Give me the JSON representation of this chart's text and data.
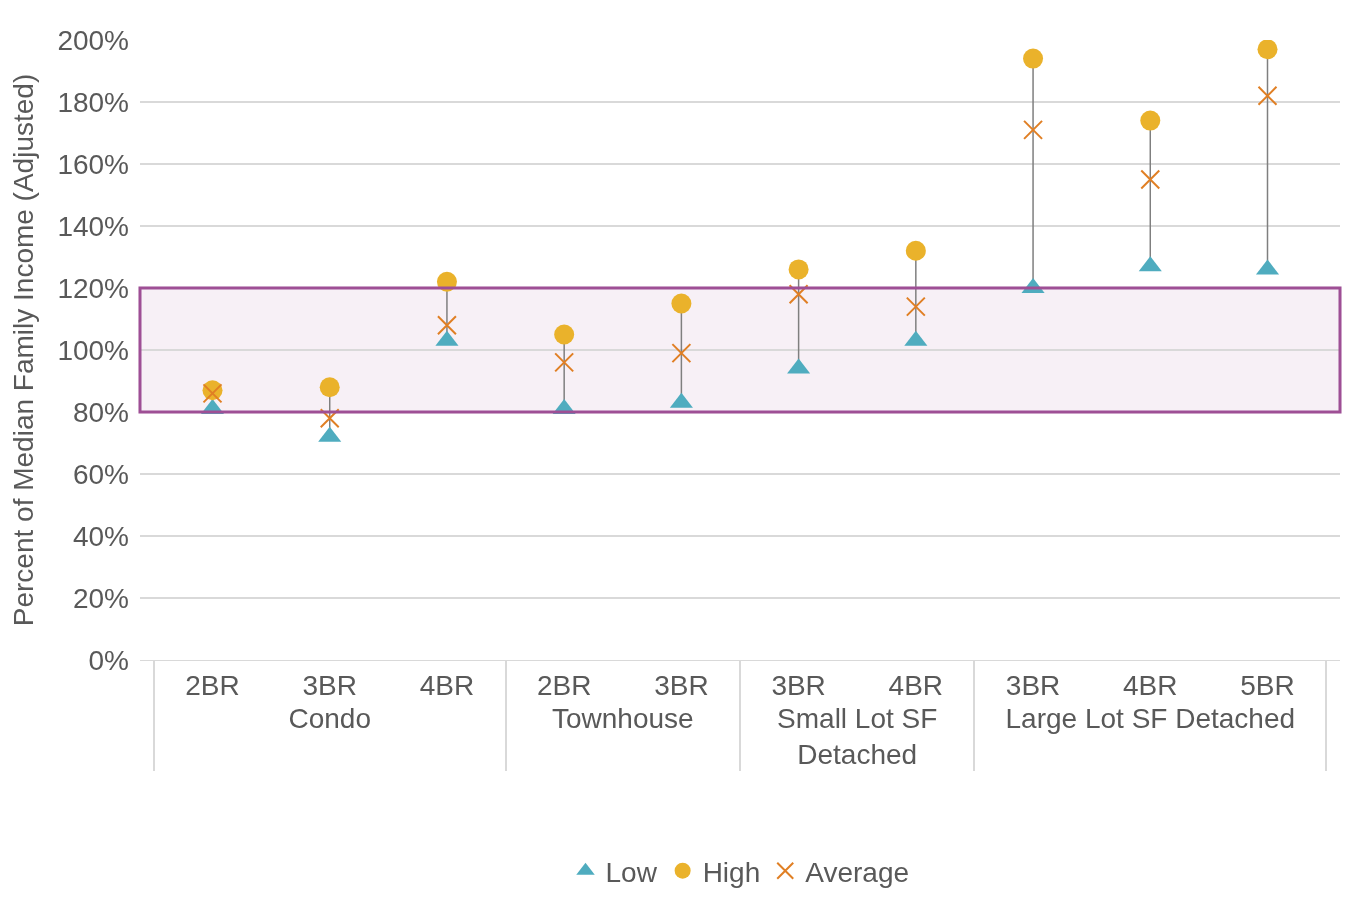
{
  "chart_data": {
    "type": "scatter",
    "ylabel": "Percent of Median Family Income (Adjusted)",
    "categories": [
      "2BR",
      "3BR",
      "4BR",
      "2BR",
      "3BR",
      "3BR",
      "4BR",
      "3BR",
      "4BR",
      "5BR"
    ],
    "annotations": [
      "Condo",
      "Townhouse",
      "Small Lot SF Detached",
      "Large Lot SF Detached"
    ],
    "series": [
      {
        "name": "Low",
        "color": "#4facbf",
        "marker": "triangle",
        "values": [
          81,
          72,
          103,
          81,
          83,
          94,
          103,
          120,
          127,
          126
        ]
      },
      {
        "name": "High",
        "color": "#eab22b",
        "marker": "circle",
        "values": [
          87,
          88,
          122,
          105,
          115,
          126,
          132,
          194,
          174,
          197
        ]
      },
      {
        "name": "Average",
        "color": "#e07f24",
        "marker": "cross",
        "values": [
          86,
          78,
          108,
          96,
          99,
          118,
          114,
          171,
          155,
          182
        ]
      }
    ],
    "ylim": [
      0,
      200
    ],
    "yticks": [
      {
        "value": 0,
        "label": "0%"
      },
      {
        "value": 20,
        "label": "20%"
      },
      {
        "value": 40,
        "label": "40%"
      },
      {
        "value": 60,
        "label": "60%"
      },
      {
        "value": 80,
        "label": "80%"
      },
      {
        "value": 100,
        "label": "100%"
      },
      {
        "value": 120,
        "label": "120%"
      },
      {
        "value": 140,
        "label": "140%"
      },
      {
        "value": 160,
        "label": "160%"
      },
      {
        "value": 180,
        "label": "180%"
      },
      {
        "value": 200,
        "label": "200%"
      }
    ],
    "bands": [
      {
        "axis": "y",
        "from": 80,
        "to": 120,
        "color": "#9e4f95"
      }
    ],
    "grid": "y",
    "legend": "bottom"
  }
}
